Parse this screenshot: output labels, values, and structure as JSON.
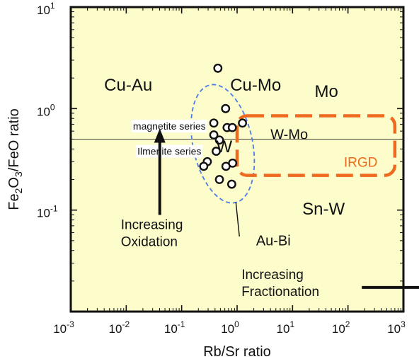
{
  "chart_data": {
    "type": "scatter",
    "title": "",
    "xlabel": "Rb/Sr ratio",
    "ylabel_parts": [
      "Fe",
      "2",
      "O",
      "3",
      "/FeO ratio"
    ],
    "x_scale": "log",
    "y_scale": "log",
    "xlim": [
      0.001,
      1000
    ],
    "ylim": [
      0.01,
      10
    ],
    "x_ticks": [
      {
        "base": "10",
        "exp": "-3",
        "value": 0.001
      },
      {
        "base": "10",
        "exp": "-2",
        "value": 0.01
      },
      {
        "base": "10",
        "exp": "-1",
        "value": 0.1
      },
      {
        "base": "10",
        "exp": "0",
        "value": 1
      },
      {
        "base": "10",
        "exp": "1",
        "value": 10
      },
      {
        "base": "10",
        "exp": "2",
        "value": 100
      },
      {
        "base": "10",
        "exp": "3",
        "value": 1000
      }
    ],
    "y_ticks": [
      {
        "base": "10",
        "exp": "1",
        "value": 10
      },
      {
        "base": "10",
        "exp": "0",
        "value": 1
      },
      {
        "base": "10",
        "exp": "-1",
        "value": 0.1
      }
    ],
    "background_color": "#fdfccb",
    "points_x": [
      0.45,
      0.62,
      0.38,
      0.66,
      0.82,
      1.25,
      0.38,
      0.48,
      0.42,
      0.29,
      0.63,
      0.83,
      0.25,
      0.48,
      0.8
    ],
    "points_y": [
      2.5,
      1.0,
      0.72,
      0.65,
      0.65,
      0.72,
      0.55,
      0.49,
      0.38,
      0.3,
      0.27,
      0.29,
      0.27,
      0.2,
      0.18
    ],
    "magnetite_ilmenite_boundary_y": 0.5,
    "regions": [
      {
        "label": "Cu-Au",
        "x": 0.004,
        "y": 1.5
      },
      {
        "label": "Cu-Mo",
        "x": 0.75,
        "y": 1.5
      },
      {
        "label": "Mo",
        "x": 25,
        "y": 1.3
      },
      {
        "label": "W-Mo",
        "x": 4,
        "y": 0.5
      },
      {
        "label": "W",
        "x": 0.42,
        "y": 0.37
      },
      {
        "label": "Sn-W",
        "x": 15,
        "y": 0.09
      },
      {
        "label": "Au-Bi",
        "x": 2.2,
        "y": 0.045
      }
    ],
    "series_labels": [
      {
        "label": "magnetite series",
        "x": 0.06,
        "y": 0.62
      },
      {
        "label": "Ilmenite series",
        "x": 0.06,
        "y": 0.35
      }
    ],
    "irgd": {
      "label": "IRGD",
      "color": "#ee6a1e",
      "x_range": [
        1.0,
        700
      ],
      "y_range": [
        0.22,
        0.85
      ]
    },
    "au_bi_field": {
      "color": "#4d7ee8",
      "center_x": 0.55,
      "center_y": 0.45,
      "leader_to": [
        1.1,
        0.055
      ]
    },
    "annotations": [
      {
        "lines": [
          "Increasing",
          "Oxidation"
        ],
        "x": 0.008,
        "y": 0.065,
        "arrow": "up"
      },
      {
        "lines": [
          "Increasing",
          "Fractionation"
        ],
        "x": 1.2,
        "y": 0.021,
        "arrow": "right"
      }
    ]
  }
}
